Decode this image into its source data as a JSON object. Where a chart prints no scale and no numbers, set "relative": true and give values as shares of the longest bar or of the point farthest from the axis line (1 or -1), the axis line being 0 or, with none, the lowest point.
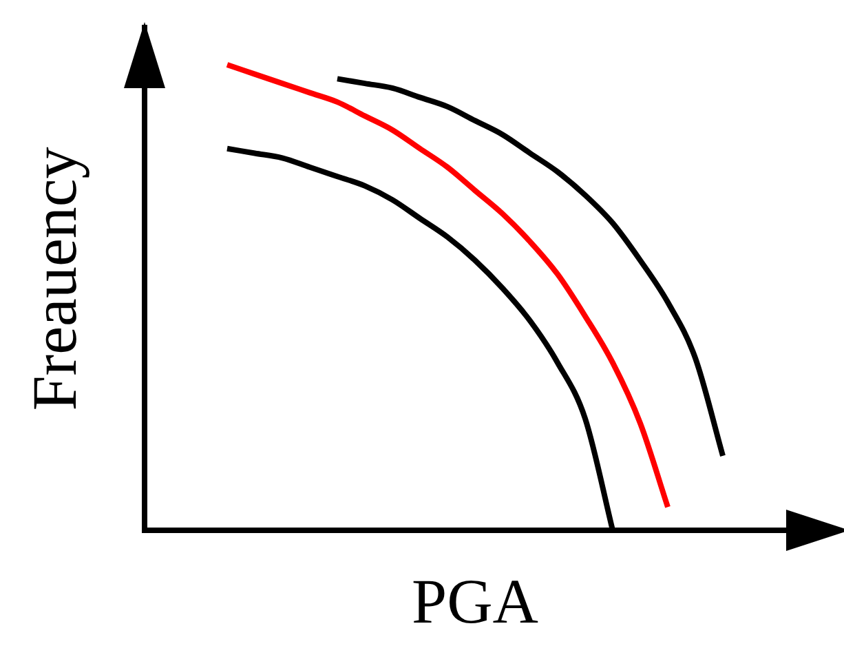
{
  "chart_data": {
    "type": "line",
    "relative": true,
    "xlabel": "PGA",
    "ylabel": "Freauency",
    "categories": [
      null,
      null,
      null,
      null,
      null,
      null,
      null,
      null,
      null,
      null,
      null,
      null,
      null,
      null,
      null,
      null,
      null,
      null,
      null,
      null,
      null,
      null,
      null,
      null,
      null
    ],
    "series": [
      {
        "color": "#000000",
        "values": [
          null,
          null,
          null,
          0.82,
          0.81,
          0.8,
          0.78,
          0.76,
          0.74,
          0.71,
          0.67,
          0.63,
          0.58,
          0.52,
          0.45,
          0.36,
          0.24,
          0,
          null,
          null,
          null,
          null,
          null,
          null,
          null
        ]
      },
      {
        "color": "#ff0000",
        "values": [
          null,
          null,
          null,
          1.0,
          0.98,
          0.96,
          0.94,
          0.92,
          0.89,
          0.86,
          0.82,
          0.78,
          0.73,
          0.68,
          0.62,
          0.55,
          0.46,
          0.36,
          0.23,
          0.05,
          null,
          null,
          null,
          null,
          null
        ]
      },
      {
        "color": "#000000",
        "values": [
          null,
          null,
          null,
          null,
          null,
          null,
          null,
          0.97,
          0.96,
          0.95,
          0.93,
          0.91,
          0.88,
          0.85,
          0.81,
          0.77,
          0.72,
          0.66,
          0.58,
          0.49,
          0.37,
          0.16,
          null,
          null,
          null
        ]
      }
    ],
    "grid": false,
    "legend": false,
    "tick_labels": false,
    "marker": "none",
    "line_style": "solid"
  }
}
